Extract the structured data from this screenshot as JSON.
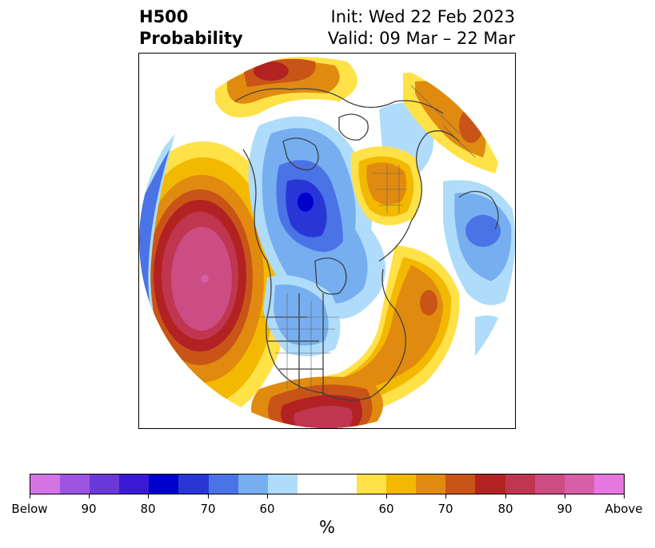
{
  "title": {
    "line1": "H500",
    "line2": "Probability",
    "init": "Init: Wed 22 Feb 2023",
    "valid": "Valid: 09 Mar – 22 Mar"
  },
  "map": {
    "projection": "north-polar-stereographic",
    "features": [
      {
        "label": "Below",
        "category": "below-90",
        "color": "#2330d8"
      },
      {
        "label": "Above",
        "category": "above-90",
        "color": "#d8588f"
      }
    ]
  },
  "colorbar": {
    "colors": [
      "#d475e6",
      "#9c55e0",
      "#6b38d8",
      "#3a19d6",
      "#0000cc",
      "#2836d8",
      "#4a73e6",
      "#76aef0",
      "#aedcfa",
      "#ffffff",
      "#ffffff",
      "#ffe148",
      "#f3b800",
      "#e08b10",
      "#c95417",
      "#b22222",
      "#c03650",
      "#cc4d83",
      "#d65fa8",
      "#e677e0"
    ],
    "ticks": [
      "Below",
      "90",
      "80",
      "70",
      "60",
      "60",
      "70",
      "80",
      "90",
      "Above"
    ],
    "label": "%"
  }
}
